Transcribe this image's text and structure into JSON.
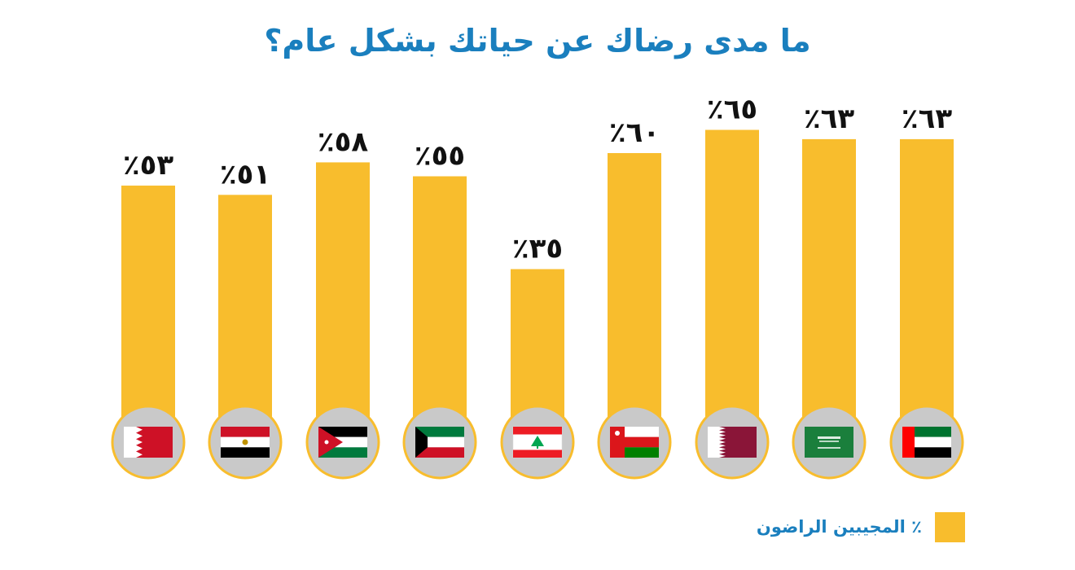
{
  "title": "ما مدى رضاك عن حياتك بشكل عام؟",
  "colors": {
    "bar": "#f8bd2d",
    "circle": "#c9c9c9",
    "circle_border": "#f8bd2d",
    "title": "#1a7fbe",
    "label": "#111111"
  },
  "legend": {
    "label": "٪ المجيبين الراضون"
  },
  "chart_data": {
    "type": "bar",
    "categories": [
      "bahrain-flag",
      "egypt-flag",
      "jordan-flag",
      "kuwait-flag",
      "lebanon-flag",
      "oman-flag",
      "qatar-flag",
      "saudi-flag",
      "uae-flag"
    ],
    "values": [
      53,
      51,
      58,
      55,
      35,
      60,
      65,
      63,
      63
    ],
    "value_labels": [
      "٪٥٣",
      "٪٥١",
      "٪٥٨",
      "٪٥٥",
      "٪٣٥",
      "٪٦٠",
      "٪٦٥",
      "٪٦٣",
      "٪٦٣"
    ],
    "series": [
      {
        "name": "٪ المجيبين الراضون",
        "values": [
          53,
          51,
          58,
          55,
          35,
          60,
          65,
          63,
          63
        ]
      }
    ],
    "ylim": [
      0,
      100
    ],
    "grid": false,
    "legend_position": "bottom-right"
  }
}
